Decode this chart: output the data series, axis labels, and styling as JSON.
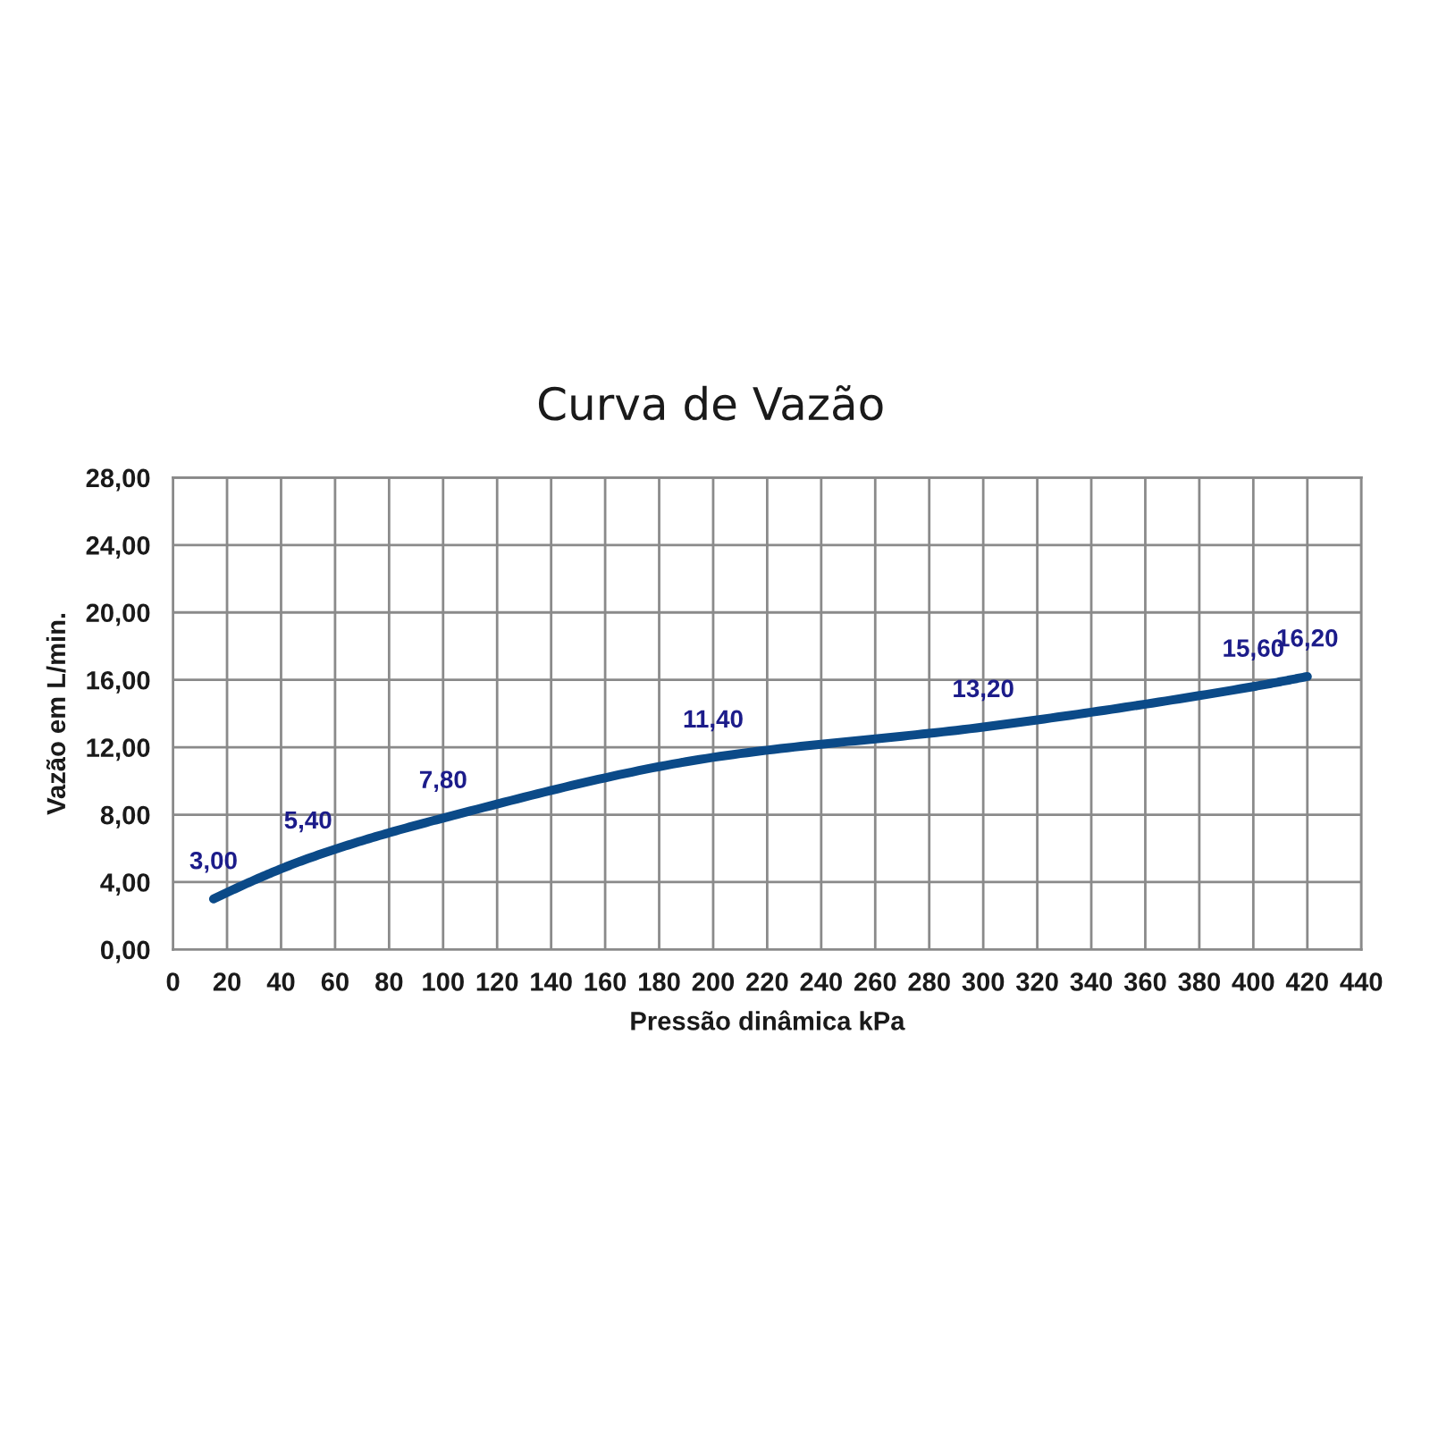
{
  "chart_data": {
    "type": "line",
    "title": "Curva de Vazão",
    "xlabel": "Pressão dinâmica kPa",
    "ylabel": "Vazão em L/min.",
    "x": [
      15,
      50,
      100,
      200,
      300,
      400,
      420
    ],
    "series": [
      {
        "color": "#0b4a88",
        "values": [
          3.0,
          5.4,
          7.8,
          11.4,
          13.2,
          15.6,
          16.2
        ],
        "value_labels": [
          "3,00",
          "5,40",
          "7,80",
          "11,40",
          "13,20",
          "15,60",
          "16,20"
        ]
      }
    ],
    "xlim": [
      0,
      440
    ],
    "xticks": [
      0,
      20,
      40,
      60,
      80,
      100,
      120,
      140,
      160,
      180,
      200,
      220,
      240,
      260,
      280,
      300,
      320,
      340,
      360,
      380,
      400,
      420,
      440
    ],
    "ylim": [
      0,
      28
    ],
    "yticks": [
      {
        "value": 0,
        "label": "0,00"
      },
      {
        "value": 4,
        "label": "4,00"
      },
      {
        "value": 8,
        "label": "8,00"
      },
      {
        "value": 12,
        "label": "12,00"
      },
      {
        "value": 16,
        "label": "16,00"
      },
      {
        "value": 20,
        "label": "20,00"
      },
      {
        "value": 24,
        "label": "24,00"
      },
      {
        "value": 28,
        "label": "28,00"
      }
    ],
    "grid": true,
    "line_style": "solid"
  }
}
